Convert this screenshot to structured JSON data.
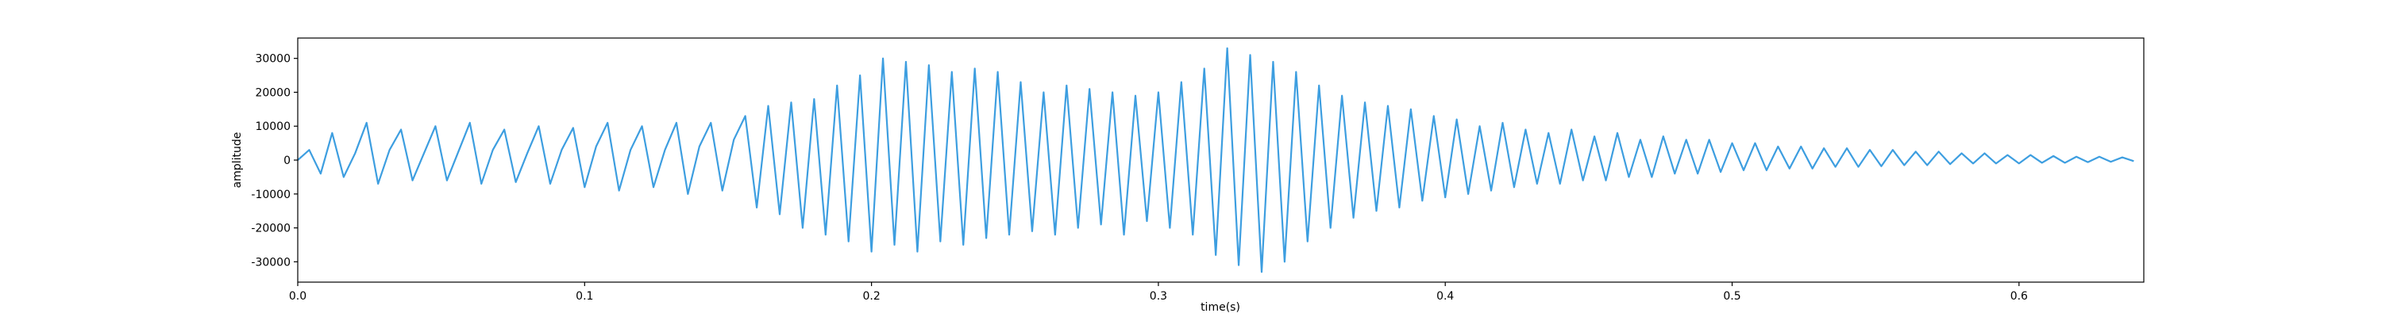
{
  "chart_data": {
    "type": "line",
    "xlabel": "time(s)",
    "ylabel": "amplitude",
    "color": "#3d9ee0",
    "xlim": [
      0,
      0.6435
    ],
    "ylim": [
      -36000,
      36000
    ],
    "xticks": [
      {
        "value": 0,
        "label": "0.0"
      },
      0.1,
      0.2,
      0.3,
      0.4,
      0.5,
      0.6
    ],
    "yticks": [
      -30000,
      -20000,
      -10000,
      0,
      10000,
      20000,
      30000
    ],
    "x": [
      0,
      0.004,
      0.008,
      0.012,
      0.016,
      0.02,
      0.024,
      0.028,
      0.032,
      0.036,
      0.04,
      0.044,
      0.048,
      0.052,
      0.056,
      0.06,
      0.064,
      0.068,
      0.072,
      0.076,
      0.08,
      0.084,
      0.088,
      0.092,
      0.096,
      0.1,
      0.104,
      0.108,
      0.112,
      0.116,
      0.12,
      0.124,
      0.128,
      0.132,
      0.136,
      0.14,
      0.144,
      0.148,
      0.152,
      0.156,
      0.16,
      0.164,
      0.168,
      0.172,
      0.176,
      0.18,
      0.184,
      0.188,
      0.192,
      0.196,
      0.2,
      0.204,
      0.208,
      0.212,
      0.216,
      0.22,
      0.224,
      0.228,
      0.232,
      0.236,
      0.24,
      0.244,
      0.248,
      0.252,
      0.256,
      0.26,
      0.264,
      0.268,
      0.272,
      0.276,
      0.28,
      0.284,
      0.288,
      0.292,
      0.296,
      0.3,
      0.304,
      0.308,
      0.312,
      0.316,
      0.32,
      0.324,
      0.328,
      0.332,
      0.336,
      0.34,
      0.344,
      0.348,
      0.352,
      0.356,
      0.36,
      0.364,
      0.368,
      0.372,
      0.376,
      0.38,
      0.384,
      0.388,
      0.392,
      0.396,
      0.4,
      0.404,
      0.408,
      0.412,
      0.416,
      0.42,
      0.424,
      0.428,
      0.432,
      0.436,
      0.44,
      0.444,
      0.448,
      0.452,
      0.456,
      0.46,
      0.464,
      0.468,
      0.472,
      0.476,
      0.48,
      0.484,
      0.488,
      0.492,
      0.496,
      0.5,
      0.504,
      0.508,
      0.512,
      0.516,
      0.52,
      0.524,
      0.528,
      0.532,
      0.536,
      0.54,
      0.544,
      0.548,
      0.552,
      0.556,
      0.56,
      0.564,
      0.568,
      0.572,
      0.576,
      0.58,
      0.584,
      0.588,
      0.592,
      0.596,
      0.6,
      0.604,
      0.608,
      0.612,
      0.616,
      0.62,
      0.624,
      0.628,
      0.632,
      0.636,
      0.64
    ],
    "values": [
      0,
      3000,
      -4000,
      8000,
      -5000,
      2000,
      11000,
      -7000,
      3000,
      9000,
      -6000,
      2000,
      10000,
      -6000,
      2500,
      11000,
      -7000,
      3000,
      9000,
      -6500,
      2000,
      10000,
      -7000,
      3000,
      9500,
      -8000,
      4000,
      11000,
      -9000,
      3000,
      10000,
      -8000,
      3000,
      11000,
      -10000,
      4000,
      11000,
      -9000,
      6000,
      13000,
      -14000,
      16000,
      -16000,
      17000,
      -20000,
      18000,
      -22000,
      22000,
      -24000,
      25000,
      -27000,
      30000,
      -25000,
      29000,
      -27000,
      28000,
      -24000,
      26000,
      -25000,
      27000,
      -23000,
      26000,
      -22000,
      23000,
      -21000,
      20000,
      -22000,
      22000,
      -20000,
      21000,
      -19000,
      20000,
      -22000,
      19000,
      -18000,
      20000,
      -20000,
      23000,
      -22000,
      27000,
      -28000,
      33000,
      -31000,
      31000,
      -33000,
      29000,
      -30000,
      26000,
      -24000,
      22000,
      -20000,
      19000,
      -17000,
      17000,
      -15000,
      16000,
      -14000,
      15000,
      -12000,
      13000,
      -11000,
      12000,
      -10000,
      10000,
      -9000,
      11000,
      -8000,
      9000,
      -7000,
      8000,
      -7000,
      9000,
      -6000,
      7000,
      -6000,
      8000,
      -5000,
      6000,
      -5000,
      7000,
      -4000,
      6000,
      -4000,
      6000,
      -3500,
      5000,
      -3000,
      5000,
      -3000,
      4000,
      -2500,
      4000,
      -2500,
      3500,
      -2000,
      3500,
      -2000,
      3000,
      -1800,
      3000,
      -1500,
      2500,
      -1500,
      2500,
      -1200,
      2000,
      -1000,
      2000,
      -1000,
      1500,
      -1000,
      1500,
      -800,
      1200,
      -800,
      1000,
      -600,
      1000,
      -500,
      800,
      -300
    ]
  }
}
